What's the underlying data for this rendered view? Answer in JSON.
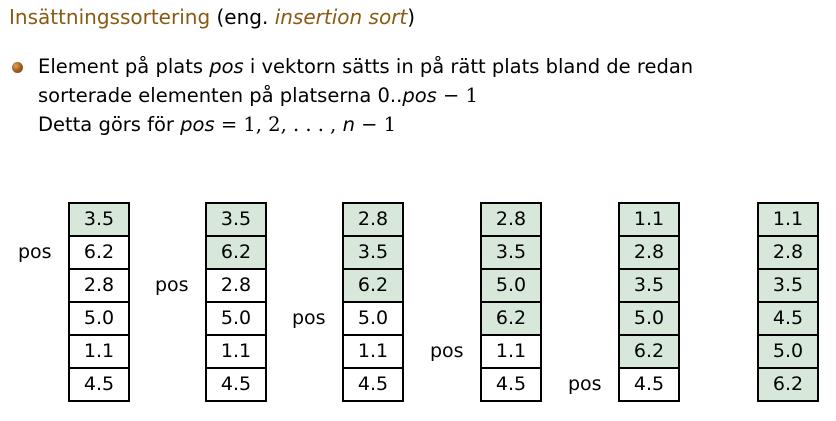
{
  "heading": {
    "main": "Insättningssortering",
    "paren_open": " (eng. ",
    "english": "insertion sort",
    "paren_close": ")"
  },
  "bullet": {
    "line1_a": "Element på plats ",
    "line1_pos": "pos",
    "line1_b": " i vektorn sätts in på rätt plats bland de redan",
    "line2_a": "sorterade elementen på platserna 0..",
    "line2_pos": "pos",
    "line2_b": " − 1",
    "line3_a": "Detta görs för ",
    "line3_pos": "pos",
    "line3_b": " = 1, 2, . . . , ",
    "line3_n": "n",
    "line3_c": " − 1"
  },
  "pos_label": "pos",
  "steps": [
    {
      "values": [
        "3.5",
        "6.2",
        "2.8",
        "5.0",
        "1.1",
        "4.5"
      ],
      "sorted_count": 1,
      "pos": 1
    },
    {
      "values": [
        "3.5",
        "6.2",
        "2.8",
        "5.0",
        "1.1",
        "4.5"
      ],
      "sorted_count": 2,
      "pos": 2
    },
    {
      "values": [
        "2.8",
        "3.5",
        "6.2",
        "5.0",
        "1.1",
        "4.5"
      ],
      "sorted_count": 3,
      "pos": 3
    },
    {
      "values": [
        "2.8",
        "3.5",
        "5.0",
        "6.2",
        "1.1",
        "4.5"
      ],
      "sorted_count": 4,
      "pos": 4
    },
    {
      "values": [
        "1.1",
        "2.8",
        "3.5",
        "5.0",
        "6.2",
        "4.5"
      ],
      "sorted_count": 5,
      "pos": 5
    },
    {
      "values": [
        "1.1",
        "2.8",
        "3.5",
        "4.5",
        "5.0",
        "6.2"
      ],
      "sorted_count": 6,
      "pos": null
    }
  ]
}
